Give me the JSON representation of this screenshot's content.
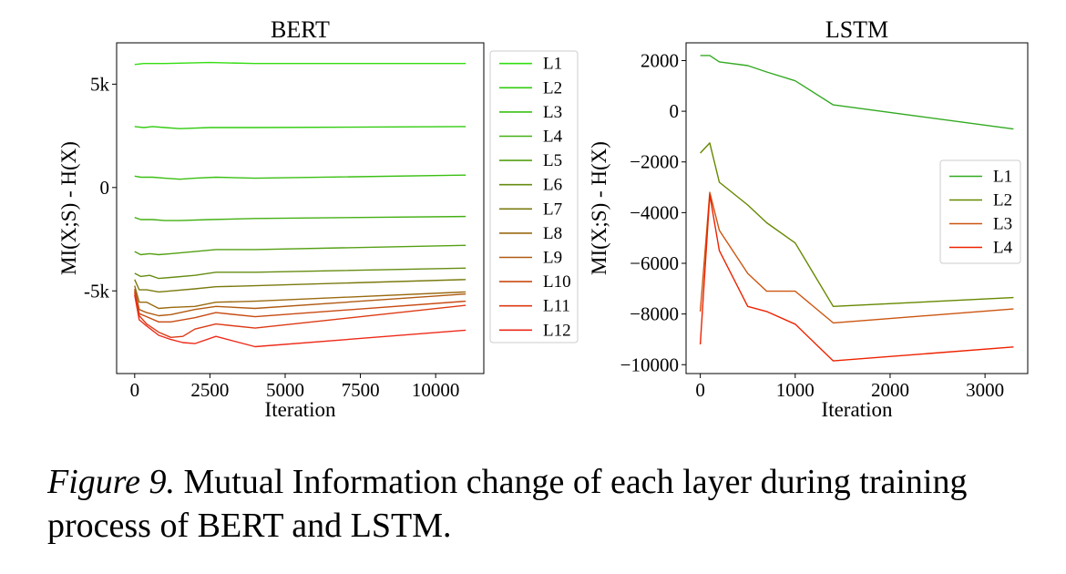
{
  "chart_data": [
    {
      "type": "line",
      "title": "BERT",
      "xlabel": "Iteration",
      "ylabel": "MI(X;S) - H(X)",
      "xlim": [
        -600,
        11600
      ],
      "ylim": [
        -9000,
        7000
      ],
      "xticks": [
        0,
        2500,
        5000,
        7500,
        10000
      ],
      "xtick_labels": [
        "0",
        "2500",
        "5000",
        "7500",
        "10000"
      ],
      "yticks": [
        5000,
        0,
        -5000
      ],
      "ytick_labels": [
        "5k",
        "0",
        "-5k"
      ],
      "legend_position": "right-outside",
      "series": [
        {
          "name": "L1",
          "color": "#33dd11",
          "x": [
            0,
            300,
            1000,
            2500,
            4000,
            11000
          ],
          "y": [
            5950,
            6000,
            6000,
            6050,
            6000,
            6000
          ]
        },
        {
          "name": "L2",
          "color": "#33cc11",
          "x": [
            0,
            300,
            600,
            1000,
            1500,
            2500,
            4000,
            11000
          ],
          "y": [
            2950,
            2900,
            2950,
            2900,
            2850,
            2900,
            2900,
            2950
          ]
        },
        {
          "name": "L3",
          "color": "#3ac012",
          "x": [
            0,
            200,
            600,
            1000,
            1500,
            2000,
            2700,
            4000,
            11000
          ],
          "y": [
            550,
            500,
            500,
            450,
            400,
            450,
            500,
            450,
            600
          ]
        },
        {
          "name": "L4",
          "color": "#44b014",
          "x": [
            0,
            200,
            600,
            1000,
            1500,
            2500,
            4000,
            11000
          ],
          "y": [
            -1450,
            -1550,
            -1550,
            -1600,
            -1600,
            -1550,
            -1500,
            -1400
          ]
        },
        {
          "name": "L5",
          "color": "#55a014",
          "x": [
            0,
            200,
            500,
            800,
            1200,
            2000,
            2700,
            4000,
            11000
          ],
          "y": [
            -3100,
            -3250,
            -3200,
            -3250,
            -3200,
            -3100,
            -3000,
            -3000,
            -2800
          ]
        },
        {
          "name": "L6",
          "color": "#668c12",
          "x": [
            0,
            200,
            500,
            800,
            1200,
            2000,
            2700,
            4000,
            11000
          ],
          "y": [
            -4150,
            -4300,
            -4250,
            -4400,
            -4350,
            -4250,
            -4100,
            -4100,
            -3900
          ]
        },
        {
          "name": "L7",
          "color": "#7a7a10",
          "x": [
            0,
            150,
            400,
            800,
            1200,
            2000,
            2700,
            4000,
            11000
          ],
          "y": [
            -4450,
            -4950,
            -4950,
            -5050,
            -5000,
            -4900,
            -4800,
            -4750,
            -4450
          ]
        },
        {
          "name": "L8",
          "color": "#9a6a10",
          "x": [
            0,
            150,
            400,
            800,
            1200,
            2000,
            2700,
            4000,
            11000
          ],
          "y": [
            -4750,
            -5550,
            -5550,
            -5850,
            -5800,
            -5750,
            -5550,
            -5500,
            -5050
          ]
        },
        {
          "name": "L9",
          "color": "#b05a12",
          "x": [
            0,
            150,
            400,
            800,
            1200,
            2000,
            2700,
            4000,
            11000
          ],
          "y": [
            -4900,
            -5900,
            -6050,
            -6200,
            -6150,
            -5900,
            -5750,
            -5850,
            -5150
          ]
        },
        {
          "name": "L10",
          "color": "#c84a12",
          "x": [
            0,
            150,
            400,
            800,
            1200,
            2000,
            2700,
            4000,
            11000
          ],
          "y": [
            -5000,
            -6100,
            -6250,
            -6500,
            -6500,
            -6300,
            -6050,
            -6250,
            -5500
          ]
        },
        {
          "name": "L11",
          "color": "#dd3a14",
          "x": [
            0,
            150,
            400,
            800,
            1200,
            1600,
            2000,
            2700,
            4000,
            11000
          ],
          "y": [
            -5100,
            -6200,
            -6600,
            -7000,
            -7250,
            -7200,
            -6850,
            -6600,
            -6800,
            -5700
          ]
        },
        {
          "name": "L12",
          "color": "#ee2a18",
          "x": [
            0,
            150,
            400,
            800,
            1200,
            1600,
            2000,
            2700,
            4000,
            11000
          ],
          "y": [
            -5200,
            -6400,
            -6700,
            -7150,
            -7350,
            -7500,
            -7550,
            -7200,
            -7700,
            -6900
          ]
        }
      ]
    },
    {
      "type": "line",
      "title": "LSTM",
      "xlabel": "Iteration",
      "ylabel": "MI(X;S) - H(X)",
      "xlim": [
        -150,
        3450
      ],
      "ylim": [
        -10350,
        2700
      ],
      "xticks": [
        0,
        1000,
        2000,
        3000
      ],
      "xtick_labels": [
        "0",
        "1000",
        "2000",
        "3000"
      ],
      "yticks": [
        2000,
        0,
        -2000,
        -4000,
        -6000,
        -8000,
        -10000
      ],
      "ytick_labels": [
        "2000",
        "0",
        "−2000",
        "−4000",
        "−6000",
        "−8000",
        "−10000"
      ],
      "legend_position": "center-right",
      "series": [
        {
          "name": "L1",
          "color": "#33aa22",
          "x": [
            0,
            100,
            200,
            500,
            700,
            1000,
            1400,
            3300
          ],
          "y": [
            2200,
            2200,
            1950,
            1800,
            1550,
            1200,
            250,
            -700
          ]
        },
        {
          "name": "L2",
          "color": "#668800",
          "x": [
            0,
            100,
            200,
            500,
            700,
            1000,
            1400,
            3300
          ],
          "y": [
            -1650,
            -1250,
            -2800,
            -3700,
            -4400,
            -5200,
            -7700,
            -7350
          ]
        },
        {
          "name": "L3",
          "color": "#cc5511",
          "x": [
            0,
            100,
            200,
            500,
            700,
            1000,
            1400,
            3300
          ],
          "y": [
            -7900,
            -3200,
            -4700,
            -6400,
            -7100,
            -7100,
            -8350,
            -7800
          ]
        },
        {
          "name": "L4",
          "color": "#ee2200",
          "x": [
            0,
            100,
            200,
            500,
            700,
            1000,
            1400,
            3300
          ],
          "y": [
            -9200,
            -3300,
            -5500,
            -7700,
            -7900,
            -8400,
            -9850,
            -9300
          ]
        }
      ]
    }
  ],
  "caption": {
    "label": "Figure 9.",
    "text": " Mutual Information change of each layer during training process of BERT and LSTM."
  }
}
